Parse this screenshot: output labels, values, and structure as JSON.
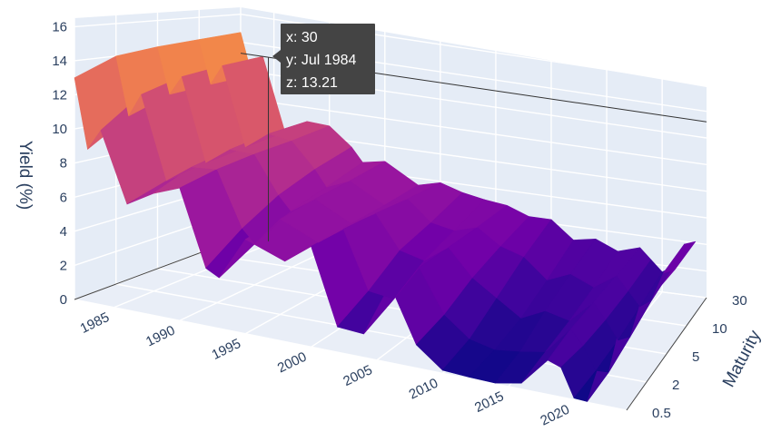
{
  "chart_data": {
    "type": "surface",
    "axes": {
      "z": {
        "title": "Yield (%)",
        "range": [
          0,
          16.5
        ],
        "ticks": [
          "0",
          "2",
          "4",
          "6",
          "8",
          "10",
          "12",
          "14",
          "16"
        ]
      },
      "y": {
        "ticks": [
          "1985",
          "1990",
          "1995",
          "2000",
          "2005",
          "2010",
          "2015",
          "2020"
        ],
        "range": [
          "1982",
          "2024"
        ]
      },
      "x": {
        "title": "Maturity",
        "ticks": [
          "0.5",
          "2",
          "5",
          "10",
          "30"
        ]
      }
    },
    "colorscale": "plasma",
    "maturities": [
      0.5,
      2,
      5,
      10,
      30
    ],
    "yield_by_year": [
      [
        1982,
        13.0,
        14.0,
        14.3,
        14.5,
        14.7
      ],
      [
        1983,
        9.0,
        10.5,
        11.4,
        11.6,
        11.8
      ],
      [
        1984,
        10.3,
        12.0,
        12.7,
        13.0,
        13.21
      ],
      [
        1986,
        6.3,
        7.0,
        7.4,
        7.7,
        8.0
      ],
      [
        1988,
        7.3,
        8.2,
        8.6,
        8.9,
        9.0
      ],
      [
        1990,
        8.0,
        8.4,
        8.6,
        8.7,
        8.9
      ],
      [
        1992,
        3.5,
        5.0,
        6.2,
        7.0,
        7.6
      ],
      [
        1993,
        3.1,
        4.2,
        5.3,
        5.9,
        6.6
      ],
      [
        1995,
        5.8,
        6.1,
        6.4,
        6.6,
        6.9
      ],
      [
        1998,
        5.0,
        5.1,
        5.2,
        5.3,
        5.5
      ],
      [
        2000,
        6.3,
        6.3,
        6.2,
        6.0,
        5.9
      ],
      [
        2002,
        1.6,
        2.6,
        4.0,
        4.6,
        5.4
      ],
      [
        2004,
        1.5,
        2.4,
        3.6,
        4.3,
        5.1
      ],
      [
        2006,
        5.0,
        4.8,
        4.8,
        4.8,
        4.9
      ],
      [
        2008,
        1.5,
        2.0,
        3.0,
        3.7,
        4.3
      ],
      [
        2010,
        0.2,
        0.7,
        1.9,
        3.2,
        4.3
      ],
      [
        2012,
        0.1,
        0.3,
        0.8,
        1.8,
        3.0
      ],
      [
        2014,
        0.05,
        0.5,
        1.6,
        2.5,
        3.3
      ],
      [
        2016,
        0.4,
        0.8,
        1.2,
        1.8,
        2.6
      ],
      [
        2018,
        2.3,
        2.7,
        2.8,
        2.9,
        3.1
      ],
      [
        2019,
        2.0,
        1.7,
        1.7,
        1.9,
        2.3
      ],
      [
        2020,
        0.1,
        0.15,
        0.4,
        0.9,
        1.5
      ],
      [
        2021,
        0.05,
        0.2,
        0.8,
        1.5,
        2.0
      ],
      [
        2022,
        3.0,
        4.0,
        3.8,
        3.6,
        3.8
      ],
      [
        2023,
        5.5,
        4.8,
        4.2,
        4.0,
        4.1
      ]
    ],
    "hover": {
      "x_label": "x: 30",
      "y_label": "y: Jul 1984",
      "z_label": "z: 13.21"
    }
  }
}
